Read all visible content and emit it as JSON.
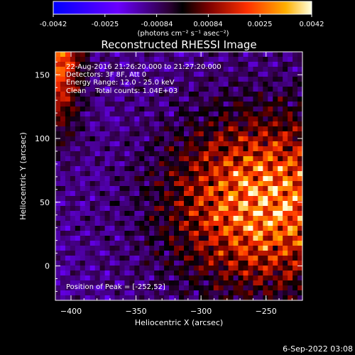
{
  "colorbar": {
    "ticks": [
      "-0.0042",
      "-0.0025",
      "-0.00084",
      "0.00084",
      "0.0025",
      "0.0042"
    ],
    "unit_label": "(photons cm⁻² s⁻¹ asec⁻²)"
  },
  "chart_data": {
    "type": "heatmap",
    "title": "Reconstructed RHESSI Image",
    "xlabel": "Heliocentric X (arcsec)",
    "ylabel": "Heliocentric Y (arcsec)",
    "xlim": [
      -412,
      -222
    ],
    "ylim": [
      -27,
      168
    ],
    "x_ticks": [
      -400,
      -350,
      -300,
      -250
    ],
    "x_tick_labels": [
      "−400",
      "−350",
      "−300",
      "−250"
    ],
    "y_ticks": [
      0,
      50,
      100,
      150
    ],
    "y_tick_labels": [
      "0",
      "50",
      "100",
      "150"
    ],
    "clim": [
      -0.0042,
      0.0042
    ],
    "peak": [
      -252,
      52
    ],
    "annotations": [
      "22-Aug-2016 21:26:20.000 to 21:27:20.000",
      "Detectors: 3F 8F, Att 0",
      "Energy Range: 12.0 - 25.0 keV",
      "Clean    Total counts: 1.04E+03"
    ],
    "peak_label": "Position of Peak = [-252,52]"
  },
  "footer": {
    "timestamp": "6-Sep-2022 03:08"
  }
}
